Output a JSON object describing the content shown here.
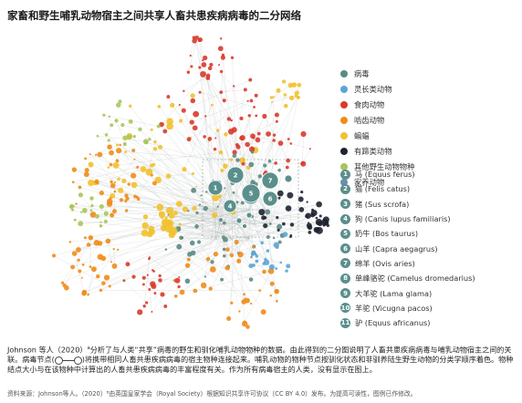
{
  "title": "家畜和野生哺乳动物宿主之间共享人畜共患疾病病毒的二分网络",
  "legend": [
    {
      "label": "病毒",
      "color": "#5b8a83"
    },
    {
      "label": "灵长类动物",
      "color": "#5aa6d6"
    },
    {
      "label": "食肉动物",
      "color": "#d93a2b"
    },
    {
      "label": "啮齿动物",
      "color": "#f08c1a"
    },
    {
      "label": "蝙蝠",
      "color": "#f2c12e"
    },
    {
      "label": "有蹄类动物",
      "color": "#1f2430"
    },
    {
      "label": "其他野生动物物种",
      "color": "#a8c65a"
    },
    {
      "label": "家养动物",
      "color": "#6b8faa"
    }
  ],
  "domestic_key": [
    {
      "num": "1",
      "label": "马 (Equus ferus)"
    },
    {
      "num": "2",
      "label": "猫 (Felis catus)"
    },
    {
      "num": "3",
      "label": "猪 (Sus scrofa)"
    },
    {
      "num": "4",
      "label": "狗 (Canis lupus familiaris)"
    },
    {
      "num": "5",
      "label": "奶牛 (Bos taurus)"
    },
    {
      "num": "6",
      "label": "山羊 (Capra aegagrus)"
    },
    {
      "num": "7",
      "label": "绵羊 (Ovis aries)"
    },
    {
      "num": "8",
      "label": "单峰骆驼 (Camelus dromedarius)"
    },
    {
      "num": "9",
      "label": "大羊驼 (Lama glama)"
    },
    {
      "num": "10",
      "label": "羊驼 (Vicugna pacos)"
    },
    {
      "num": "11",
      "label": "驴 (Equus africanus)"
    }
  ],
  "caption": {
    "part1": "Johnson 等人（2020）",
    "part2": "分析了与人类“共享”病毒的野生和驯化哺乳动物物种的数据。由此得到的二分图说明了人畜共患疾病病毒与哺乳动物宿主之间的关联。病毒节点(",
    "part3": ")将携带相同人畜共患疾病病毒的宿主物种连接起来。哺乳动物的物种节点按驯化状态和非驯养陆生野生动物的分类学顺序着色。物种结点大小与在该物种中计算出的人畜共患疾病病毒的丰富程度有关。作为所有病毒宿主的人类，没有显示在图上。",
    "sup": "a"
  },
  "source": "资料来源：Johnson等人。（2020）⁸由英国皇家学会（Royal Society）根据知识共享许可协议（CC BY 4.0）发布。为提高可读性，图例已作修改。"
}
